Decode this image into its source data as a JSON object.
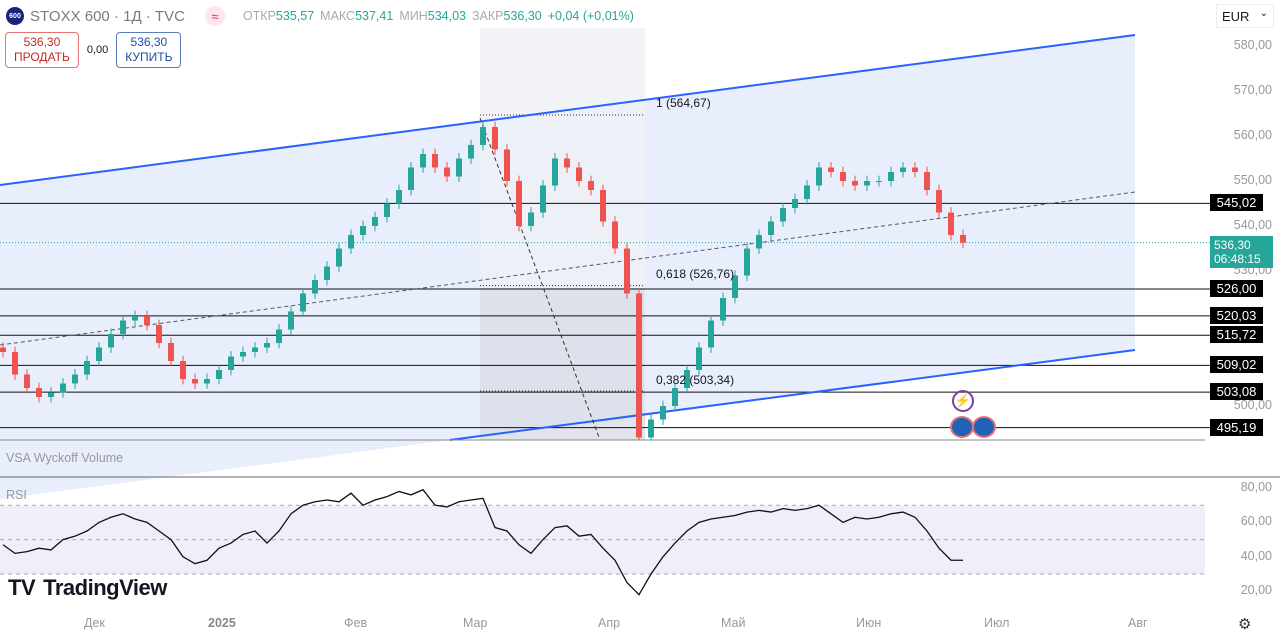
{
  "header": {
    "logo": "600",
    "symbol": "STOXX 600 · 1Д · TVC",
    "approx_icon": "≈",
    "ohlc": [
      {
        "k": "ОТКР",
        "v": "535,57"
      },
      {
        "k": "МАКС",
        "v": "537,41"
      },
      {
        "k": "МИН",
        "v": "534,03"
      },
      {
        "k": "ЗАКР",
        "v": "536,30"
      }
    ],
    "change": "+0,04 (+0,01%)"
  },
  "trade": {
    "sell_price": "536,30",
    "sell_label": "ПРОДАТЬ",
    "spread": "0,00",
    "buy_price": "536,30",
    "buy_label": "КУПИТЬ"
  },
  "currency": "EUR",
  "price_axis": [
    "580,00",
    "570,00",
    "560,00",
    "550,00",
    "540,00",
    "530,00",
    "500,00"
  ],
  "level_tags": [
    "545,02",
    "526,00",
    "520,03",
    "515,72",
    "509,02",
    "503,08",
    "495,19"
  ],
  "last_price": {
    "price": "536,30",
    "countdown": "06:48:15"
  },
  "fib_labels": [
    "1 (564,67)",
    "0,618 (526,76)",
    "0,382 (503,34)"
  ],
  "indicators": {
    "volume": "VSA Wyckoff Volume",
    "rsi": "RSI"
  },
  "rsi_axis": [
    "80,00",
    "60,00",
    "40,00",
    "20,00"
  ],
  "time_axis": [
    "Дек",
    "2025",
    "Фев",
    "Мар",
    "Апр",
    "Май",
    "Июн",
    "Июл",
    "Авг"
  ],
  "brand": "TradingView",
  "colors": {
    "up": "#26a69a",
    "down": "#ef5350",
    "channel": "#2962ff",
    "last": "#26a69a"
  },
  "chart_data": {
    "type": "candlestick",
    "levels": [
      545.02,
      526.0,
      520.03,
      515.72,
      509.02,
      503.08,
      495.19
    ],
    "fib": [
      564.67,
      526.76,
      503.34
    ],
    "closes": [
      512,
      507,
      504,
      502,
      503,
      505,
      507,
      510,
      513,
      516,
      519,
      520,
      518,
      514,
      510,
      506,
      505,
      506,
      508,
      511,
      512,
      513,
      514,
      517,
      521,
      525,
      528,
      531,
      535,
      538,
      540,
      542,
      545,
      548,
      553,
      556,
      553,
      551,
      555,
      558,
      562,
      557,
      550,
      540,
      543,
      549,
      555,
      553,
      550,
      548,
      541,
      535,
      525,
      493,
      497,
      500,
      504,
      508,
      513,
      519,
      524,
      529,
      535,
      538,
      541,
      544,
      546,
      549,
      553,
      552,
      550,
      549,
      550,
      550,
      552,
      553,
      552,
      548,
      543,
      538,
      536.3
    ],
    "rsi": [
      47,
      42,
      43,
      45,
      44,
      50,
      52,
      55,
      60,
      63,
      65,
      62,
      60,
      55,
      50,
      40,
      36,
      38,
      45,
      48,
      53,
      55,
      48,
      55,
      65,
      70,
      72,
      73,
      72,
      77,
      70,
      73,
      75,
      78,
      76,
      79,
      70,
      69,
      72,
      73,
      74,
      57,
      55,
      47,
      42,
      50,
      57,
      58,
      52,
      53,
      45,
      38,
      25,
      18,
      30,
      40,
      48,
      55,
      60,
      62,
      63,
      64,
      66,
      67,
      66,
      68,
      67,
      68,
      70,
      65,
      60,
      63,
      62,
      63,
      65,
      66,
      63,
      55,
      45,
      38,
      38
    ],
    "rsi_ylim": [
      10,
      90
    ],
    "price_ylim": [
      490,
      585
    ]
  }
}
